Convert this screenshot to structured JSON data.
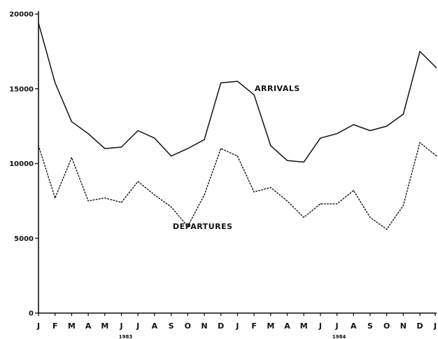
{
  "chart_data": {
    "type": "line",
    "categories": [
      "J",
      "F",
      "M",
      "A",
      "M",
      "J",
      "J",
      "A",
      "S",
      "O",
      "N",
      "D",
      "J",
      "F",
      "M",
      "A",
      "M",
      "J",
      "J",
      "A",
      "S",
      "O",
      "N",
      "D",
      "J"
    ],
    "year_labels": [
      "1983",
      "1984"
    ],
    "ylim": [
      0,
      20000
    ],
    "yticks": [
      0,
      5000,
      10000,
      15000,
      20000
    ],
    "ytick_labels": [
      "0",
      "5000",
      "10000",
      "15000",
      "20000"
    ],
    "grid": false,
    "legend": "inline labels",
    "series": [
      {
        "name": "ARRIVALS",
        "style": "solid",
        "values": [
          19400,
          15400,
          12800,
          12000,
          11000,
          11100,
          12200,
          11700,
          10500,
          11000,
          11600,
          15400,
          15500,
          14600,
          11200,
          10200,
          10100,
          11700,
          12000,
          12600,
          12200,
          12500,
          13300,
          17500,
          16400
        ]
      },
      {
        "name": "DEPARTURES",
        "style": "dotted",
        "values": [
          11200,
          7700,
          10400,
          7500,
          7700,
          7400,
          8800,
          7900,
          7100,
          5800,
          7900,
          11000,
          10500,
          8100,
          8400,
          7500,
          6400,
          7300,
          7300,
          8200,
          6400,
          5600,
          7200,
          11400,
          10500
        ]
      }
    ],
    "colors": {
      "line": "#111111",
      "background": "#ffffff"
    }
  }
}
